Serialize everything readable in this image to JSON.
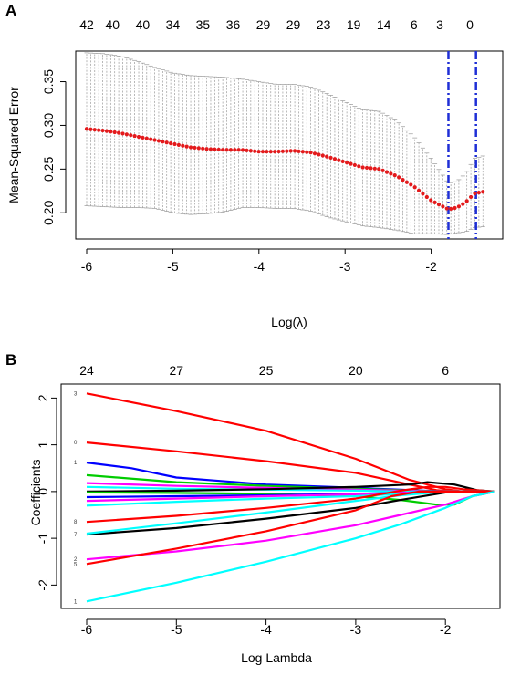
{
  "panels": {
    "a": {
      "letter": "A"
    },
    "b": {
      "letter": "B"
    }
  },
  "chart_data": [
    {
      "type": "scatter",
      "panel": "A",
      "title": "",
      "xlabel": "Log(λ)",
      "ylabel": "Mean-Squared Error",
      "xlim": [
        -6.1,
        -1.38
      ],
      "ylim": [
        0.17,
        0.385
      ],
      "x_ticks": [
        -6,
        -5,
        -4,
        -3,
        -2
      ],
      "y_ticks": [
        0.2,
        0.25,
        0.3,
        0.35
      ],
      "top_axis_labels": [
        "42",
        "40",
        "40",
        "34",
        "35",
        "36",
        "29",
        "29",
        "23",
        "19",
        "14",
        "6",
        "3",
        "0"
      ],
      "top_axis_positions": [
        -6.0,
        -5.7,
        -5.35,
        -5.0,
        -4.65,
        -4.3,
        -3.95,
        -3.6,
        -3.25,
        -2.9,
        -2.55,
        -2.2,
        -1.9,
        -1.55
      ],
      "error_bar_color": "#9a9a9a",
      "point_color": "#e31a1c",
      "vline_color": "#1f2fd6",
      "lambda_min": -1.8,
      "lambda_1se": -1.48,
      "points": [
        {
          "x": -6.0,
          "mse": 0.296,
          "lo": 0.208,
          "hi": 0.383
        },
        {
          "x": -5.8,
          "mse": 0.294,
          "lo": 0.207,
          "hi": 0.382
        },
        {
          "x": -5.6,
          "mse": 0.291,
          "lo": 0.206,
          "hi": 0.379
        },
        {
          "x": -5.4,
          "mse": 0.287,
          "lo": 0.206,
          "hi": 0.373
        },
        {
          "x": -5.2,
          "mse": 0.283,
          "lo": 0.205,
          "hi": 0.366
        },
        {
          "x": -5.0,
          "mse": 0.279,
          "lo": 0.2,
          "hi": 0.36
        },
        {
          "x": -4.8,
          "mse": 0.275,
          "lo": 0.198,
          "hi": 0.357
        },
        {
          "x": -4.6,
          "mse": 0.273,
          "lo": 0.199,
          "hi": 0.356
        },
        {
          "x": -4.4,
          "mse": 0.272,
          "lo": 0.201,
          "hi": 0.355
        },
        {
          "x": -4.2,
          "mse": 0.272,
          "lo": 0.206,
          "hi": 0.353
        },
        {
          "x": -4.0,
          "mse": 0.27,
          "lo": 0.206,
          "hi": 0.35
        },
        {
          "x": -3.8,
          "mse": 0.27,
          "lo": 0.205,
          "hi": 0.347
        },
        {
          "x": -3.6,
          "mse": 0.271,
          "lo": 0.205,
          "hi": 0.347
        },
        {
          "x": -3.4,
          "mse": 0.269,
          "lo": 0.202,
          "hi": 0.344
        },
        {
          "x": -3.2,
          "mse": 0.264,
          "lo": 0.195,
          "hi": 0.336
        },
        {
          "x": -3.0,
          "mse": 0.258,
          "lo": 0.19,
          "hi": 0.327
        },
        {
          "x": -2.8,
          "mse": 0.252,
          "lo": 0.185,
          "hi": 0.318
        },
        {
          "x": -2.6,
          "mse": 0.25,
          "lo": 0.183,
          "hi": 0.316
        },
        {
          "x": -2.4,
          "mse": 0.242,
          "lo": 0.18,
          "hi": 0.305
        },
        {
          "x": -2.2,
          "mse": 0.23,
          "lo": 0.176,
          "hi": 0.287
        },
        {
          "x": -2.0,
          "mse": 0.214,
          "lo": 0.176,
          "hi": 0.262
        },
        {
          "x": -1.8,
          "mse": 0.204,
          "lo": 0.175,
          "hi": 0.234
        },
        {
          "x": -1.7,
          "mse": 0.206,
          "lo": 0.177,
          "hi": 0.236
        },
        {
          "x": -1.6,
          "mse": 0.212,
          "lo": 0.178,
          "hi": 0.245
        },
        {
          "x": -1.5,
          "mse": 0.222,
          "lo": 0.183,
          "hi": 0.262
        },
        {
          "x": -1.4,
          "mse": 0.224,
          "lo": 0.184,
          "hi": 0.265
        }
      ]
    },
    {
      "type": "line",
      "panel": "B",
      "title": "",
      "xlabel": "Log Lambda",
      "ylabel": "Coefficients",
      "xlim": [
        -6.1,
        -1.38
      ],
      "ylim": [
        -2.5,
        2.3
      ],
      "x_ticks": [
        -6,
        -5,
        -4,
        -3,
        -2
      ],
      "y_ticks": [
        -2,
        -1,
        0,
        1,
        2
      ],
      "top_axis_labels": [
        "24",
        "27",
        "25",
        "20",
        "6"
      ],
      "top_axis_positions": [
        -6.0,
        -5.0,
        -4.0,
        -3.0,
        -2.0
      ],
      "series": [
        {
          "label": "3",
          "color": "#ff0000",
          "x": [
            -6.0,
            -5.0,
            -4.0,
            -3.0,
            -2.4,
            -2.0,
            -1.8,
            -1.45
          ],
          "y": [
            2.1,
            1.72,
            1.3,
            0.7,
            0.25,
            0.05,
            0.0,
            0.0
          ]
        },
        {
          "label": "0",
          "color": "#ff0000",
          "x": [
            -6.0,
            -5.0,
            -4.0,
            -3.0,
            -2.4,
            -2.1,
            -1.9,
            -1.45
          ],
          "y": [
            1.05,
            0.86,
            0.65,
            0.4,
            0.15,
            0.03,
            0.0,
            0.0
          ]
        },
        {
          "label": "1",
          "color": "#0000ff",
          "x": [
            -6.0,
            -5.5,
            -5.0,
            -4.0,
            -3.0,
            -2.5,
            -2.0,
            -1.45
          ],
          "y": [
            0.62,
            0.5,
            0.3,
            0.15,
            0.08,
            0.04,
            0.0,
            0.0
          ]
        },
        {
          "label": "",
          "color": "#00cc00",
          "x": [
            -6.0,
            -5.0,
            -4.0,
            -3.0,
            -2.5,
            -2.0,
            -1.45
          ],
          "y": [
            0.35,
            0.2,
            0.12,
            0.06,
            0.03,
            0.0,
            0.0
          ]
        },
        {
          "label": "",
          "color": "#ff00ff",
          "x": [
            -6.0,
            -5.0,
            -4.0,
            -3.0,
            -2.5,
            -2.0,
            -1.45
          ],
          "y": [
            0.18,
            0.12,
            0.08,
            0.04,
            0.02,
            0.0,
            0.0
          ]
        },
        {
          "label": "",
          "color": "#00ffff",
          "x": [
            -6.0,
            -5.0,
            -4.0,
            -3.0,
            -2.5,
            -2.0,
            -1.45
          ],
          "y": [
            0.1,
            0.06,
            0.04,
            0.02,
            0.0,
            0.0,
            0.0
          ]
        },
        {
          "label": "",
          "color": "#000000",
          "x": [
            -6.0,
            -5.0,
            -4.0,
            -3.0,
            -2.4,
            -2.2,
            -1.9,
            -1.65,
            -1.45
          ],
          "y": [
            0.0,
            0.02,
            0.05,
            0.1,
            0.15,
            0.2,
            0.15,
            0.03,
            0.0
          ]
        },
        {
          "label": "",
          "color": "#00cc00",
          "x": [
            -6.0,
            -5.0,
            -4.0,
            -3.0,
            -2.5,
            -2.1,
            -1.9,
            -1.7,
            -1.45
          ],
          "y": [
            -0.02,
            -0.03,
            -0.05,
            -0.1,
            -0.18,
            -0.28,
            -0.28,
            -0.1,
            0.0
          ]
        },
        {
          "label": "",
          "color": "#0000ff",
          "x": [
            -6.0,
            -5.0,
            -4.0,
            -3.0,
            -2.5,
            -2.0,
            -1.45
          ],
          "y": [
            -0.12,
            -0.1,
            -0.08,
            -0.05,
            -0.03,
            0.0,
            0.0
          ]
        },
        {
          "label": "",
          "color": "#ff00ff",
          "x": [
            -6.0,
            -5.0,
            -4.0,
            -3.0,
            -2.5,
            -2.0,
            -1.45
          ],
          "y": [
            -0.2,
            -0.15,
            -0.1,
            -0.06,
            -0.03,
            0.0,
            0.0
          ]
        },
        {
          "label": "",
          "color": "#00ffff",
          "x": [
            -6.0,
            -5.0,
            -4.0,
            -3.0,
            -2.5,
            -2.0,
            -1.45
          ],
          "y": [
            -0.3,
            -0.22,
            -0.15,
            -0.1,
            -0.05,
            0.0,
            0.0
          ]
        },
        {
          "label": "8",
          "color": "#ff0000",
          "x": [
            -6.0,
            -5.0,
            -4.0,
            -3.0,
            -2.5,
            -2.2,
            -2.0,
            -1.8,
            -1.45
          ],
          "y": [
            -0.65,
            -0.52,
            -0.35,
            -0.15,
            0.02,
            0.1,
            0.1,
            0.05,
            0.0
          ]
        },
        {
          "label": "7",
          "color": "#000000",
          "x": [
            -6.0,
            -5.0,
            -4.0,
            -3.0,
            -2.5,
            -2.0,
            -1.8,
            -1.45
          ],
          "y": [
            -0.92,
            -0.78,
            -0.58,
            -0.35,
            -0.18,
            -0.02,
            0.0,
            0.0
          ]
        },
        {
          "label": "",
          "color": "#00ffff",
          "x": [
            -6.0,
            -5.0,
            -4.0,
            -3.0,
            -2.5,
            -2.0,
            -1.45
          ],
          "y": [
            -0.9,
            -0.68,
            -0.45,
            -0.2,
            -0.08,
            0.0,
            0.0
          ]
        },
        {
          "label": "2",
          "color": "#ff00ff",
          "x": [
            -6.0,
            -5.0,
            -4.0,
            -3.0,
            -2.5,
            -2.0,
            -1.7,
            -1.45
          ],
          "y": [
            -1.45,
            -1.28,
            -1.05,
            -0.72,
            -0.5,
            -0.28,
            -0.1,
            0.0
          ]
        },
        {
          "label": "5",
          "color": "#ff0000",
          "x": [
            -6.0,
            -5.0,
            -4.0,
            -3.0,
            -2.6,
            -2.3,
            -2.1,
            -1.9,
            -1.45
          ],
          "y": [
            -1.55,
            -1.22,
            -0.85,
            -0.4,
            -0.1,
            0.0,
            0.0,
            0.0,
            0.0
          ]
        },
        {
          "label": "1",
          "color": "#00ffff",
          "x": [
            -6.0,
            -5.0,
            -4.0,
            -3.0,
            -2.5,
            -2.0,
            -1.7,
            -1.45
          ],
          "y": [
            -2.35,
            -1.95,
            -1.5,
            -1.0,
            -0.7,
            -0.35,
            -0.1,
            0.0
          ]
        }
      ]
    }
  ]
}
